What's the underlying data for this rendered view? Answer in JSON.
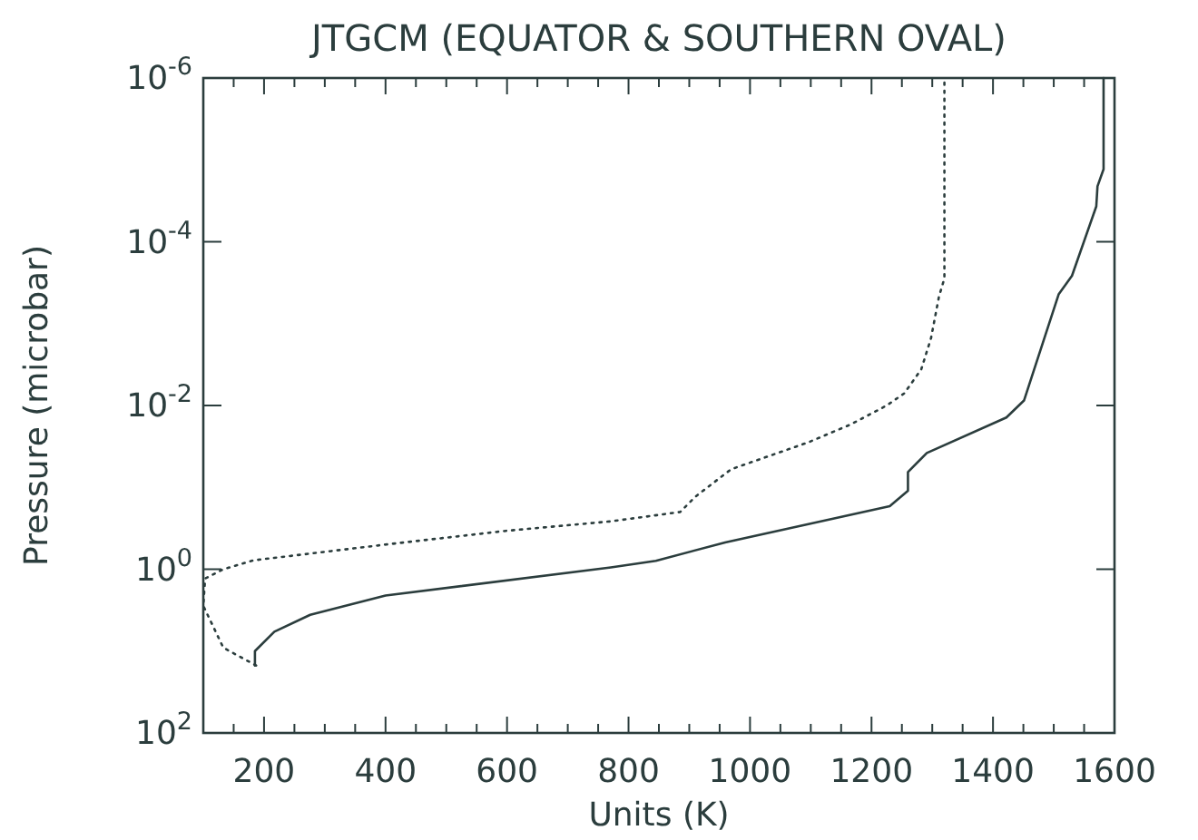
{
  "chart_data": {
    "type": "line",
    "title": "JTGCM (EQUATOR & SOUTHERN OVAL)",
    "xlabel": "Units (K)",
    "ylabel": "Pressure (microbar)",
    "log": "y",
    "grid": false,
    "xlim": [
      100,
      1600
    ],
    "xticks": [
      {
        "value": 100,
        "label": null
      },
      {
        "value": 150,
        "label": null
      },
      200,
      {
        "value": 250,
        "label": null
      },
      {
        "value": 300,
        "label": null
      },
      {
        "value": 350,
        "label": null
      },
      400,
      {
        "value": 450,
        "label": null
      },
      {
        "value": 500,
        "label": null
      },
      {
        "value": 550,
        "label": null
      },
      600,
      {
        "value": 650,
        "label": null
      },
      {
        "value": 700,
        "label": null
      },
      {
        "value": 750,
        "label": null
      },
      800,
      {
        "value": 850,
        "label": null
      },
      {
        "value": 900,
        "label": null
      },
      {
        "value": 950,
        "label": null
      },
      1000,
      {
        "value": 1050,
        "label": null
      },
      {
        "value": 1100,
        "label": null
      },
      {
        "value": 1150,
        "label": null
      },
      1200,
      {
        "value": 1250,
        "label": null
      },
      {
        "value": 1300,
        "label": null
      },
      {
        "value": 1350,
        "label": null
      },
      1400,
      {
        "value": 1450,
        "label": null
      },
      {
        "value": 1500,
        "label": null
      },
      {
        "value": 1550,
        "label": null
      },
      1600
    ],
    "ylim": [
      100,
      1e-06
    ],
    "yticks": [
      {
        "value": 100,
        "label": "10$^{2}$"
      },
      {
        "value": 1,
        "label": "10$^{0}$"
      },
      {
        "value": 0.01,
        "label": "10$^{-2}$"
      },
      {
        "value": 0.0001,
        "label": "10$^{-4}$"
      },
      {
        "value": 1e-06,
        "label": "10$^{-6}$"
      }
    ],
    "series": [
      {
        "color": "#2b3d3d",
        "line_style": "solid",
        "x": [
          185,
          185,
          217,
          276,
          400,
          771,
          845,
          959,
          1230,
          1260,
          1260,
          1291,
          1422,
          1451,
          1508,
          1530,
          1570,
          1572,
          1582,
          1582
        ],
        "values": [
          15,
          10,
          5.8,
          3.6,
          2.1,
          0.95,
          0.79,
          0.47,
          0.17,
          0.11,
          0.065,
          0.038,
          0.014,
          0.0087,
          0.00044,
          0.00026,
          3.7e-05,
          2.1e-05,
          1.3e-05,
          1e-06
        ]
      },
      {
        "color": "#2b3d3d",
        "line_style": "dotted",
        "x": [
          187,
          133,
          100,
          103,
          133,
          182,
          400,
          598,
          771,
          885,
          910,
          969,
          1097,
          1166,
          1225,
          1254,
          1282,
          1298,
          1311,
          1320,
          1320
        ],
        "values": [
          15,
          9.1,
          2.8,
          1.3,
          1.0,
          0.78,
          0.5,
          0.34,
          0.26,
          0.2,
          0.13,
          0.06,
          0.028,
          0.017,
          0.01,
          0.0071,
          0.0036,
          0.0015,
          0.00047,
          0.00028,
          1e-06
        ]
      }
    ]
  }
}
